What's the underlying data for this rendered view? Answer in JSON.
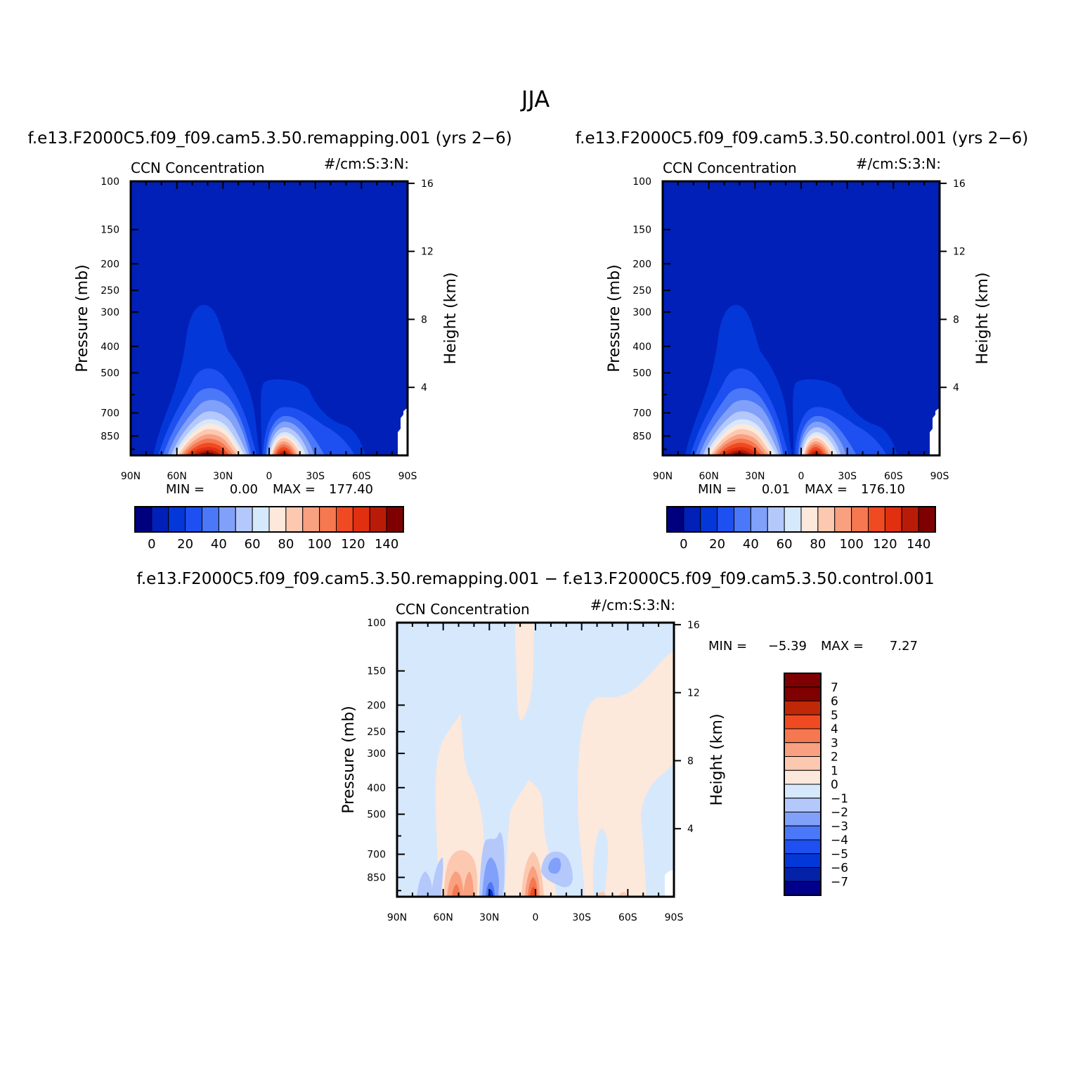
{
  "page": {
    "title": "JJA"
  },
  "tick_labels": {
    "pressure": [
      "100",
      "150",
      "200",
      "250",
      "300",
      "400",
      "500",
      "700",
      "850"
    ],
    "pressure_values": [
      100,
      150,
      200,
      250,
      300,
      400,
      500,
      700,
      850
    ],
    "height": [
      "16",
      "12",
      "8",
      "4"
    ],
    "height_values": [
      16,
      12,
      8,
      4
    ],
    "latitude": [
      "90N",
      "60N",
      "30N",
      "0",
      "30S",
      "60S",
      "90S"
    ],
    "latitude_values": [
      90,
      60,
      30,
      0,
      -30,
      -60,
      -90
    ]
  },
  "colors": {
    "abs_fill": [
      "#00007f",
      "#0020b8",
      "#0437d7",
      "#1e4ff0",
      "#4a78f8",
      "#80a0fa",
      "#b4c8fc",
      "#d6e8fc",
      "#fde8dc",
      "#fcc8b0",
      "#f8a080",
      "#f57850",
      "#f04a22",
      "#e03010",
      "#b81c08",
      "#7f0000"
    ],
    "diff_fill": [
      "#00008a",
      "#0322a8",
      "#0437d7",
      "#1e4ff0",
      "#4a78f8",
      "#80a0fa",
      "#b4c8fc",
      "#d6e8fc",
      "#fde8dc",
      "#fcc8b0",
      "#f8a080",
      "#f57850",
      "#f04a22",
      "#c02808",
      "#7f0000"
    ]
  },
  "chart_data": [
    {
      "type": "heatmap",
      "title": "f.e13.F2000C5.f09_f09.cam5.3.50.remapping.001 (yrs 2−6)",
      "left_label": "CCN Concentration",
      "right_label": "#/cm:S:3:N:",
      "xlabel": "",
      "ylabel": "Pressure (mb)",
      "ylabel_right": "Height (km)",
      "xlim": [
        90,
        -90
      ],
      "ylim": [
        100,
        1000
      ],
      "y_scale": "log",
      "min_label": "MIN =",
      "min_value": "0.00",
      "max_label": "MAX =",
      "max_value": "177.40",
      "colorbar_labels": [
        "0",
        "20",
        "40",
        "60",
        "80",
        "100",
        "120",
        "140"
      ],
      "colorbar_values": [
        0,
        20,
        40,
        60,
        80,
        100,
        120,
        140
      ],
      "color_levels": [
        -10,
        0,
        10,
        20,
        30,
        40,
        50,
        60,
        70,
        80,
        90,
        100,
        110,
        120,
        130,
        140,
        150
      ],
      "features": [
        {
          "lat": 40,
          "p_base": 1000,
          "peak_value": 177.4,
          "top_pressure": 290
        },
        {
          "lat": -8,
          "p_base": 1000,
          "peak_value": 150,
          "top_pressure": 560
        }
      ]
    },
    {
      "type": "heatmap",
      "title": "f.e13.F2000C5.f09_f09.cam5.3.50.control.001 (yrs 2−6)",
      "left_label": "CCN Concentration",
      "right_label": "#/cm:S:3:N:",
      "xlabel": "",
      "ylabel": "Pressure (mb)",
      "ylabel_right": "Height (km)",
      "xlim": [
        90,
        -90
      ],
      "ylim": [
        100,
        1000
      ],
      "y_scale": "log",
      "min_label": "MIN =",
      "min_value": "0.01",
      "max_label": "MAX =",
      "max_value": "176.10",
      "colorbar_labels": [
        "0",
        "20",
        "40",
        "60",
        "80",
        "100",
        "120",
        "140"
      ],
      "colorbar_values": [
        0,
        20,
        40,
        60,
        80,
        100,
        120,
        140
      ],
      "color_levels": [
        -10,
        0,
        10,
        20,
        30,
        40,
        50,
        60,
        70,
        80,
        90,
        100,
        110,
        120,
        130,
        140,
        150
      ],
      "features": [
        {
          "lat": 40,
          "p_base": 1000,
          "peak_value": 176.1,
          "top_pressure": 290
        },
        {
          "lat": -8,
          "p_base": 1000,
          "peak_value": 150,
          "top_pressure": 560
        }
      ]
    },
    {
      "type": "heatmap",
      "title": "f.e13.F2000C5.f09_f09.cam5.3.50.remapping.001 − f.e13.F2000C5.f09_f09.cam5.3.50.control.001",
      "left_label": "CCN Concentration",
      "right_label": "#/cm:S:3:N:",
      "xlabel": "",
      "ylabel": "Pressure (mb)",
      "ylabel_right": "Height (km)",
      "xlim": [
        90,
        -90
      ],
      "ylim": [
        100,
        1000
      ],
      "y_scale": "log",
      "min_label": "MIN =",
      "min_value": "−5.39",
      "max_label": "MAX =",
      "max_value": "7.27",
      "colorbar_labels": [
        "7",
        "6",
        "5",
        "4",
        "3",
        "2",
        "1",
        "0",
        "−1",
        "−2",
        "−3",
        "−4",
        "−5",
        "−6",
        "−7"
      ],
      "colorbar_values": [
        7,
        6,
        5,
        4,
        3,
        2,
        1,
        0,
        -1,
        -2,
        -3,
        -4,
        -5,
        -6,
        -7
      ],
      "color_levels": [
        -8,
        -7,
        -6,
        -5,
        -4,
        -3,
        -2,
        -1,
        0,
        1,
        2,
        3,
        4,
        5,
        6,
        7,
        8
      ],
      "features": [
        {
          "lat": 0,
          "p_base": 1000,
          "value_sign": "positive",
          "peak_value": 7.27
        },
        {
          "lat": 30,
          "p_base": 1000,
          "value_sign": "negative",
          "peak_value": -5.39
        },
        {
          "lat": 50,
          "p_base": 1000,
          "value_sign": "positive",
          "peak_value": 3
        },
        {
          "lat": -12,
          "p_base": 800,
          "value_sign": "negative",
          "peak_value": -2
        }
      ]
    }
  ]
}
